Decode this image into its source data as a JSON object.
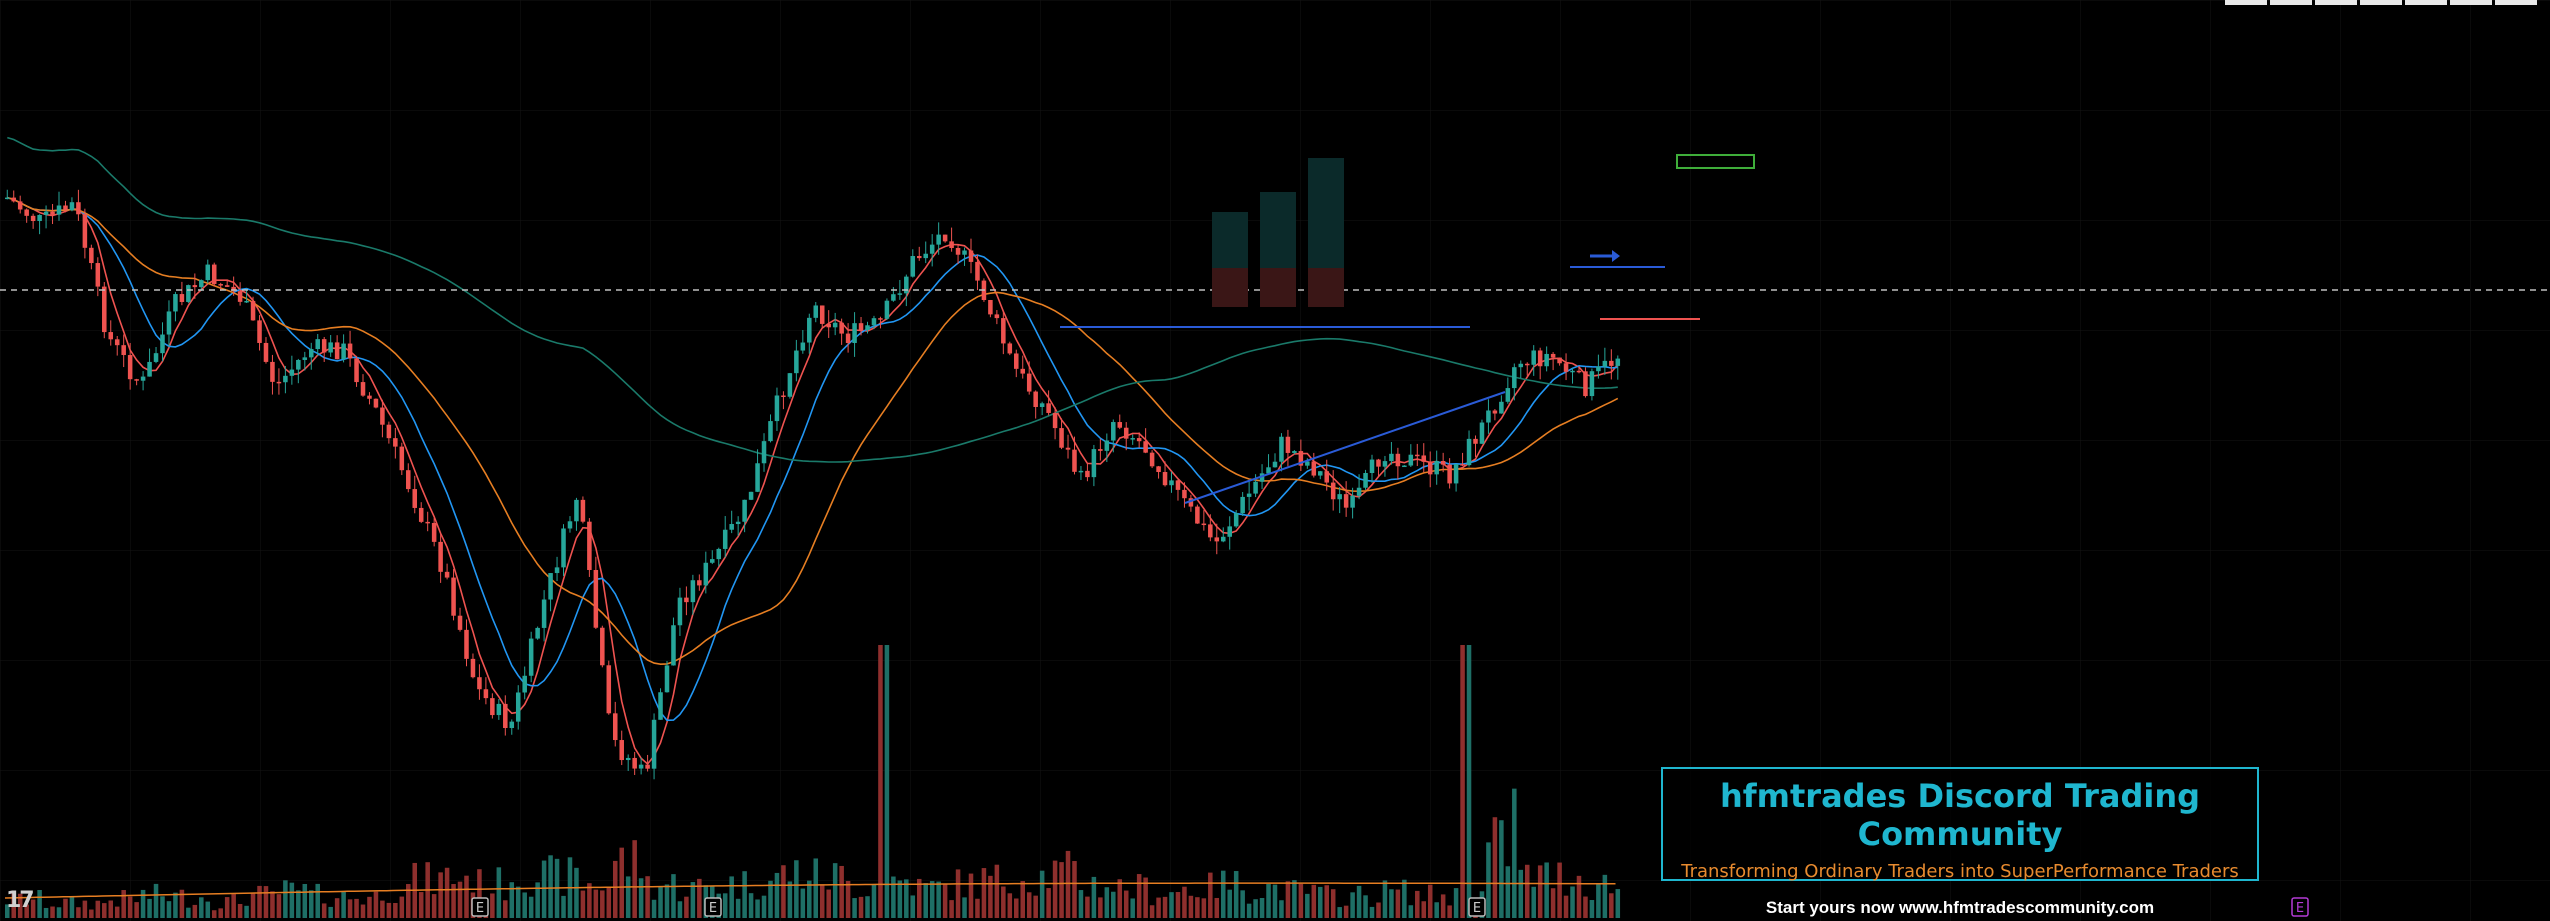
{
  "chart_data": {
    "type": "candlestick",
    "colors": {
      "up": "#26a69a",
      "down": "#ef5350",
      "ma_fast": "#ef5350",
      "ma_mid": "#2196f3",
      "ma_slow": "#e67e22",
      "ma_long": "#1a7a6a",
      "trendline": "#2a5bd7",
      "background": "#000000"
    },
    "price_path": [
      0.94,
      0.9,
      0.93,
      0.72,
      0.64,
      0.77,
      0.82,
      0.78,
      0.64,
      0.7,
      0.7,
      0.6,
      0.48,
      0.35,
      0.16,
      0.1,
      0.3,
      0.47,
      0.08,
      0.02,
      0.3,
      0.36,
      0.45,
      0.62,
      0.77,
      0.72,
      0.74,
      0.84,
      0.89,
      0.8,
      0.67,
      0.6,
      0.49,
      0.59,
      0.54,
      0.46,
      0.39,
      0.47,
      0.55,
      0.51,
      0.44,
      0.54,
      0.52,
      0.5,
      0.58,
      0.68,
      0.69,
      0.64,
      0.69
    ],
    "volume_profile": [
      0.25,
      0.2,
      0.2,
      0.25,
      0.3,
      0.28,
      0.22,
      0.3,
      0.35,
      0.3,
      0.28,
      0.4,
      0.5,
      0.55,
      0.45,
      0.6,
      0.55,
      0.45,
      0.75,
      0.45,
      0.4,
      0.45,
      0.5,
      0.6,
      0.55,
      0.45,
      0.5,
      0.4,
      0.45,
      0.5,
      0.55,
      0.6,
      0.45,
      0.4,
      0.35,
      0.4,
      0.45,
      0.4,
      0.35,
      0.3,
      0.3,
      0.35,
      0.3,
      0.3,
      0.95,
      0.55,
      0.55,
      0.45,
      0.4
    ],
    "volume_spikes": [
      {
        "bar": 0.545,
        "value": 0.9
      },
      {
        "bar": 0.905,
        "value": 1.0
      },
      {
        "bar": 0.935,
        "value": 0.42
      }
    ],
    "earnings_markers": [
      "E",
      "E",
      "E",
      "E"
    ]
  },
  "promo": {
    "title": "hfmtrades Discord Trading Community",
    "subtitle": "Transforming Ordinary Traders into SuperPerformance Traders",
    "cta": "Start yours now www.hfmtradescommunity.com"
  },
  "logo": "17"
}
